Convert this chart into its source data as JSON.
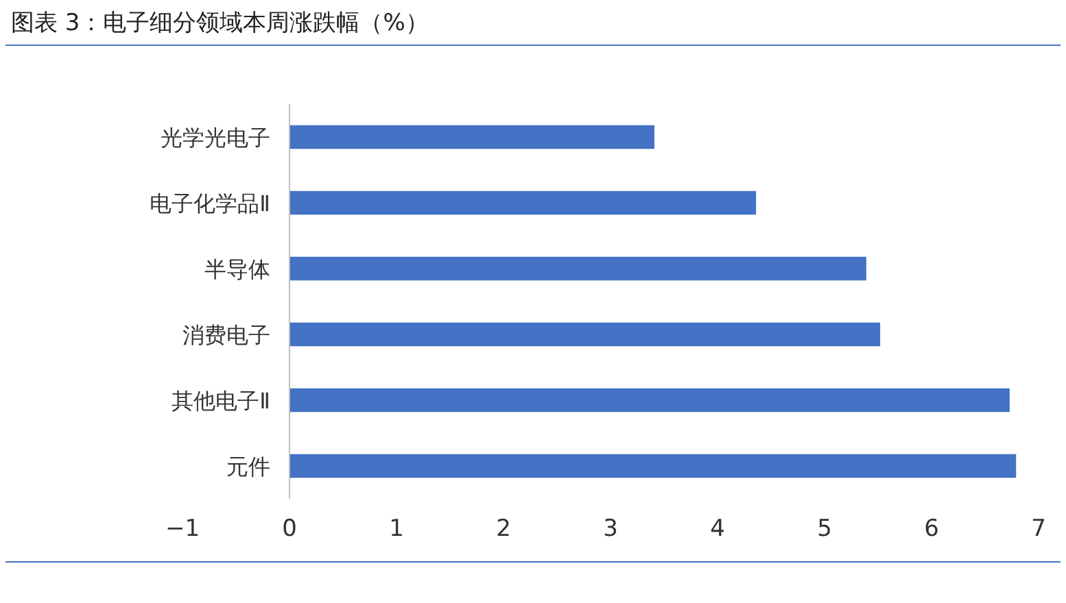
{
  "chart_data": {
    "type": "bar",
    "orientation": "horizontal",
    "title": "图表 3：电子细分领域本周涨跌幅（%）",
    "categories": [
      "光学光电子",
      "电子化学品Ⅱ",
      "半导体",
      "消费电子",
      "其他电子Ⅱ",
      "元件"
    ],
    "values": [
      3.41,
      4.36,
      5.39,
      5.52,
      6.73,
      6.79
    ],
    "color": "#4472c4",
    "xlim": [
      -1,
      7
    ],
    "xticks": [
      -1,
      0,
      1,
      2,
      3,
      4,
      5,
      6,
      7
    ],
    "grid": false,
    "tick_labels": "x"
  }
}
